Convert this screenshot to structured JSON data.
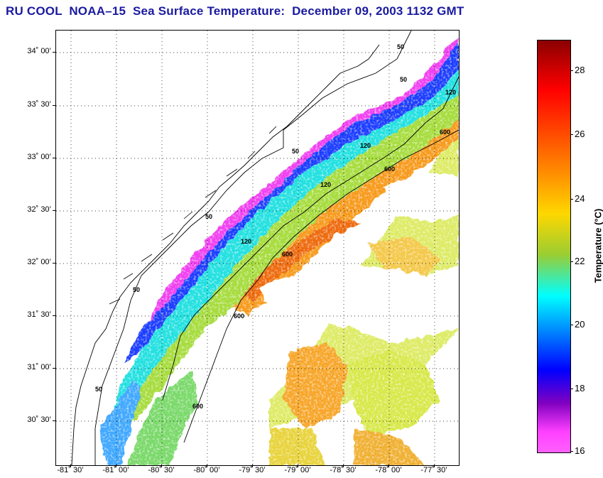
{
  "title": "RU COOL  NOAA–15  Sea Surface Temperature:  December 09, 2003 1132 GMT",
  "map": {
    "lat_labels": [
      "34˚ 00’",
      "33˚ 30’",
      "33˚ 00’",
      "32˚ 30’",
      "32˚ 00’",
      "31˚ 30’",
      "31˚ 00’",
      "30˚ 30’"
    ],
    "lon_labels": [
      "-81˚ 30’",
      "-81˚ 00’",
      "-80˚ 30’",
      "-80˚ 00’",
      "-79˚ 30’",
      "-79˚ 00’",
      "-78˚ 30’",
      "-78˚ 00’",
      "-77˚ 30’"
    ],
    "contour_labels": [
      "50",
      "50",
      "50",
      "50",
      "50",
      "50",
      "120",
      "120",
      "120",
      "120",
      "600",
      "600",
      "600",
      "600",
      "600"
    ]
  },
  "colorbar": {
    "title": "Temperature (°C)",
    "min": 16,
    "max": 29,
    "tick_labels": [
      "28",
      "26",
      "24",
      "22",
      "20",
      "18",
      "16"
    ],
    "colors": [
      "#8b0000",
      "#ff0000",
      "#ff8c00",
      "#ffd700",
      "#9acd32",
      "#00ffff",
      "#0000ff",
      "#8000c0",
      "#ff40ff"
    ]
  }
}
